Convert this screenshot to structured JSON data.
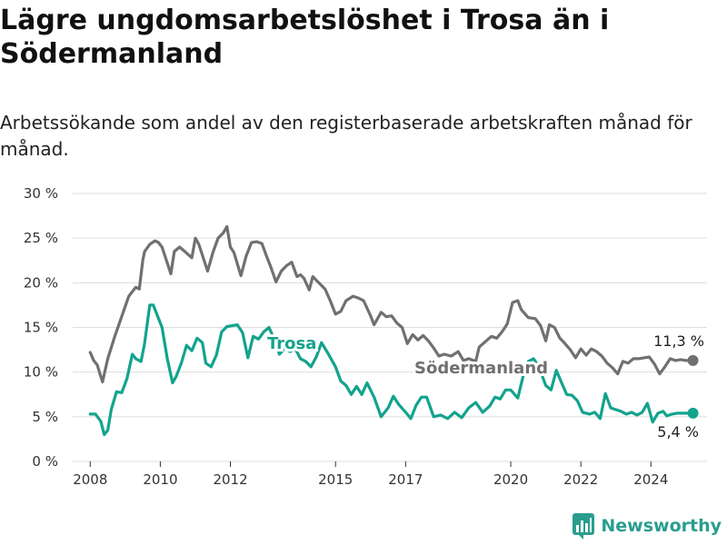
{
  "title": "Lägre ungdomsarbetslöshet i Trosa än i Södermanland",
  "subtitle": "Arbetssökande som andel av den registerbaserade arbetskraften månad för månad.",
  "brand": "Newsworthy",
  "colors": {
    "trosa": "#13a38d",
    "sodermanland": "#707070",
    "brand": "#2a9d8f",
    "grid": "#dddddd"
  },
  "chart_data": {
    "type": "line",
    "x_unit": "year (decimal)",
    "xlim": [
      2007.5,
      2025.6
    ],
    "ylim": [
      0,
      30
    ],
    "y_ticks": [
      "0 %",
      "5 %",
      "10 %",
      "15 %",
      "20 %",
      "25 %",
      "30 %"
    ],
    "x_ticks": [
      "2008",
      "2010",
      "2012",
      "2015",
      "2017",
      "2020",
      "2022",
      "2024"
    ],
    "x_tick_years": [
      2008,
      2010,
      2012,
      2015,
      2017,
      2020,
      2022,
      2024
    ],
    "grid": "horizontal",
    "series": [
      {
        "name": "Södermanland",
        "end_label": "11,3 %",
        "x": [
          2008.0,
          2008.1,
          2008.2,
          2008.35,
          2008.5,
          2008.7,
          2008.95,
          2009.1,
          2009.3,
          2009.4,
          2009.5,
          2009.55,
          2009.7,
          2009.85,
          2009.95,
          2010.05,
          2010.15,
          2010.3,
          2010.4,
          2010.55,
          2010.7,
          2010.9,
          2011.0,
          2011.1,
          2011.25,
          2011.35,
          2011.5,
          2011.65,
          2011.8,
          2011.9,
          2012.0,
          2012.1,
          2012.3,
          2012.45,
          2012.6,
          2012.75,
          2012.9,
          2013.05,
          2013.15,
          2013.3,
          2013.45,
          2013.6,
          2013.75,
          2013.9,
          2014.0,
          2014.1,
          2014.25,
          2014.35,
          2014.5,
          2014.7,
          2014.85,
          2015.0,
          2015.15,
          2015.3,
          2015.5,
          2015.65,
          2015.8,
          2016.0,
          2016.1,
          2016.3,
          2016.45,
          2016.6,
          2016.75,
          2016.9,
          2017.05,
          2017.2,
          2017.35,
          2017.5,
          2017.65,
          2017.8,
          2017.95,
          2018.1,
          2018.3,
          2018.5,
          2018.65,
          2018.8,
          2019.0,
          2019.1,
          2019.3,
          2019.45,
          2019.6,
          2019.75,
          2019.9,
          2020.05,
          2020.2,
          2020.3,
          2020.5,
          2020.7,
          2020.85,
          2021.0,
          2021.1,
          2021.25,
          2021.4,
          2021.5,
          2021.7,
          2021.85,
          2022.0,
          2022.15,
          2022.3,
          2022.45,
          2022.6,
          2022.75,
          2022.9,
          2023.05,
          2023.2,
          2023.35,
          2023.5,
          2023.65,
          2023.8,
          2023.95,
          2024.1,
          2024.25,
          2024.4,
          2024.55,
          2024.7,
          2024.85,
          2025.0,
          2025.2
        ],
        "y": [
          12.2,
          11.3,
          10.8,
          8.9,
          11.5,
          14.0,
          16.8,
          18.5,
          19.5,
          19.3,
          22.5,
          23.5,
          24.3,
          24.7,
          24.5,
          24.0,
          22.8,
          21.0,
          23.5,
          24.0,
          23.5,
          22.8,
          25.0,
          24.3,
          22.5,
          21.3,
          23.4,
          25.0,
          25.6,
          26.3,
          24.0,
          23.4,
          20.8,
          23.0,
          24.5,
          24.6,
          24.4,
          22.8,
          21.8,
          20.1,
          21.3,
          21.9,
          22.3,
          20.7,
          20.9,
          20.5,
          19.2,
          20.7,
          20.1,
          19.3,
          18.0,
          16.5,
          16.8,
          18.0,
          18.5,
          18.3,
          18.0,
          16.3,
          15.3,
          16.7,
          16.2,
          16.3,
          15.5,
          15.0,
          13.2,
          14.2,
          13.6,
          14.1,
          13.5,
          12.7,
          11.8,
          12.0,
          11.8,
          12.3,
          11.3,
          11.5,
          11.2,
          12.8,
          13.5,
          14.0,
          13.8,
          14.5,
          15.4,
          17.8,
          18.0,
          17.0,
          16.1,
          16.0,
          15.2,
          13.5,
          15.3,
          15.0,
          13.8,
          13.4,
          12.5,
          11.6,
          12.6,
          11.9,
          12.6,
          12.3,
          11.8,
          11.0,
          10.5,
          9.8,
          11.2,
          11.0,
          11.5,
          11.5,
          11.6,
          11.7,
          10.9,
          9.8,
          10.6,
          11.5,
          11.3,
          11.4,
          11.3,
          11.3
        ]
      },
      {
        "name": "Trosa",
        "end_label": "5,4 %",
        "x": [
          2008.0,
          2008.15,
          2008.3,
          2008.4,
          2008.5,
          2008.6,
          2008.75,
          2008.9,
          2009.05,
          2009.2,
          2009.3,
          2009.45,
          2009.55,
          2009.7,
          2009.8,
          2010.05,
          2010.2,
          2010.35,
          2010.45,
          2010.6,
          2010.75,
          2010.9,
          2011.05,
          2011.2,
          2011.3,
          2011.45,
          2011.6,
          2011.75,
          2011.9,
          2012.05,
          2012.2,
          2012.35,
          2012.5,
          2012.65,
          2012.8,
          2012.95,
          2013.1,
          2013.25,
          2013.4,
          2013.55,
          2013.7,
          2013.85,
          2014.0,
          2014.15,
          2014.3,
          2014.45,
          2014.6,
          2014.8,
          2015.0,
          2015.15,
          2015.3,
          2015.45,
          2015.6,
          2015.75,
          2015.9,
          2016.1,
          2016.3,
          2016.5,
          2016.65,
          2016.8,
          2017.0,
          2017.15,
          2017.3,
          2017.45,
          2017.6,
          2017.8,
          2018.0,
          2018.2,
          2018.4,
          2018.6,
          2018.8,
          2019.0,
          2019.2,
          2019.4,
          2019.55,
          2019.7,
          2019.85,
          2020.0,
          2020.2,
          2020.35,
          2020.5,
          2020.65,
          2020.8,
          2021.0,
          2021.15,
          2021.3,
          2021.45,
          2021.6,
          2021.75,
          2021.9,
          2022.05,
          2022.25,
          2022.4,
          2022.55,
          2022.7,
          2022.85,
          2023.0,
          2023.15,
          2023.3,
          2023.45,
          2023.6,
          2023.75,
          2023.9,
          2024.05,
          2024.2,
          2024.35,
          2024.45,
          2024.6,
          2024.75,
          2024.95,
          2025.1,
          2025.2
        ],
        "y": [
          5.3,
          5.3,
          4.5,
          3.0,
          3.5,
          5.8,
          7.8,
          7.7,
          9.3,
          12.0,
          11.5,
          11.2,
          13.2,
          17.5,
          17.5,
          15.0,
          11.5,
          8.8,
          9.5,
          11.0,
          13.0,
          12.4,
          13.8,
          13.3,
          11.0,
          10.6,
          11.9,
          14.5,
          15.1,
          15.2,
          15.3,
          14.4,
          11.6,
          14.0,
          13.7,
          14.5,
          15.0,
          13.7,
          12.0,
          12.7,
          12.3,
          12.6,
          11.5,
          11.2,
          10.6,
          11.7,
          13.3,
          12.0,
          10.6,
          9.0,
          8.5,
          7.5,
          8.4,
          7.5,
          8.8,
          7.2,
          5.0,
          6.0,
          7.3,
          6.4,
          5.5,
          4.8,
          6.3,
          7.2,
          7.2,
          5.0,
          5.2,
          4.8,
          5.5,
          4.9,
          6.0,
          6.6,
          5.5,
          6.2,
          7.2,
          7.0,
          8.0,
          8.0,
          7.1,
          9.5,
          11.2,
          11.5,
          10.6,
          8.5,
          8.0,
          10.2,
          8.8,
          7.5,
          7.4,
          6.8,
          5.5,
          5.3,
          5.5,
          4.8,
          7.6,
          6.0,
          5.8,
          5.6,
          5.3,
          5.5,
          5.2,
          5.5,
          6.5,
          4.4,
          5.4,
          5.6,
          5.1,
          5.3,
          5.4,
          5.4,
          5.4,
          5.4
        ]
      }
    ]
  }
}
